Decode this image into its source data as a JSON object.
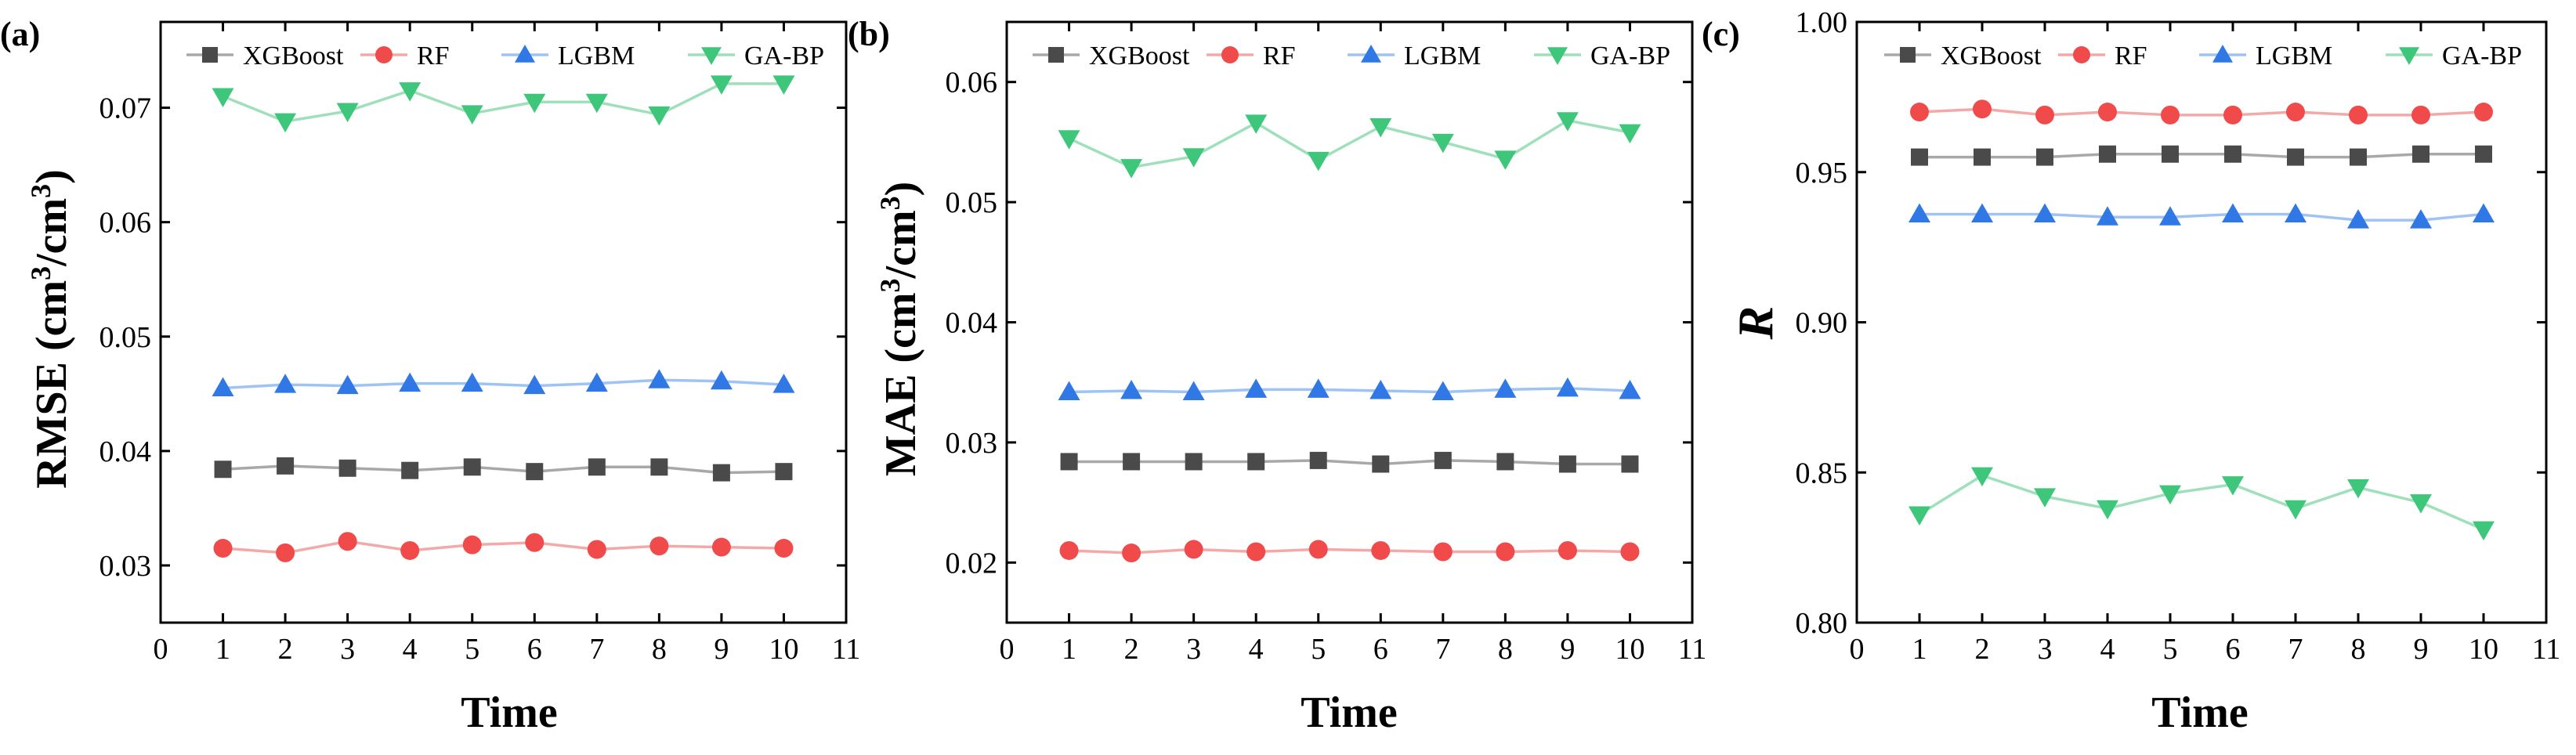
{
  "figure": {
    "xlabel": "Time"
  },
  "chart_data": [
    {
      "type": "line",
      "panel_label": "(a)",
      "ylabel_main": "RMSE (cm",
      "ylabel_sup1": "3",
      "ylabel_mid": "/cm",
      "ylabel_sup2": "3",
      "ylabel_end": ")",
      "ylabel_italic": false,
      "xlabel": "Time",
      "xlim": [
        0,
        11
      ],
      "ylim": [
        0.025,
        0.0775
      ],
      "xticks": [
        0,
        1,
        2,
        3,
        4,
        5,
        6,
        7,
        8,
        9,
        10,
        11
      ],
      "yticks": [
        0.03,
        0.04,
        0.05,
        0.06,
        0.07
      ],
      "ytick_labels": [
        "0.03",
        "0.04",
        "0.05",
        "0.06",
        "0.07"
      ],
      "x": [
        1,
        2,
        3,
        4,
        5,
        6,
        7,
        8,
        9,
        10
      ],
      "series": [
        {
          "name": "XGBoost",
          "values": [
            0.0384,
            0.0387,
            0.0385,
            0.0383,
            0.0386,
            0.0382,
            0.0386,
            0.0386,
            0.0381,
            0.0382
          ]
        },
        {
          "name": "RF",
          "values": [
            0.0315,
            0.0311,
            0.0321,
            0.0313,
            0.0318,
            0.032,
            0.0314,
            0.0317,
            0.0316,
            0.0315
          ]
        },
        {
          "name": "LGBM",
          "values": [
            0.0455,
            0.0458,
            0.0457,
            0.0459,
            0.0459,
            0.0457,
            0.0459,
            0.0462,
            0.0461,
            0.0458
          ]
        },
        {
          "name": "GA-BP",
          "values": [
            0.071,
            0.0688,
            0.0697,
            0.0715,
            0.0695,
            0.0705,
            0.0705,
            0.0694,
            0.0721,
            0.0721
          ]
        }
      ]
    },
    {
      "type": "line",
      "panel_label": "(b)",
      "ylabel_main": "MAE (cm",
      "ylabel_sup1": "3",
      "ylabel_mid": "/cm",
      "ylabel_sup2": "3",
      "ylabel_end": ")",
      "ylabel_italic": false,
      "xlabel": "Time",
      "xlim": [
        0,
        11
      ],
      "ylim": [
        0.015,
        0.065
      ],
      "xticks": [
        0,
        1,
        2,
        3,
        4,
        5,
        6,
        7,
        8,
        9,
        10,
        11
      ],
      "yticks": [
        0.02,
        0.03,
        0.04,
        0.05,
        0.06
      ],
      "ytick_labels": [
        "0.02",
        "0.03",
        "0.04",
        "0.05",
        "0.06"
      ],
      "x": [
        1,
        2,
        3,
        4,
        5,
        6,
        7,
        8,
        9,
        10
      ],
      "series": [
        {
          "name": "XGBoost",
          "values": [
            0.0284,
            0.0284,
            0.0284,
            0.0284,
            0.0285,
            0.0282,
            0.0285,
            0.0284,
            0.0282,
            0.0282
          ]
        },
        {
          "name": "RF",
          "values": [
            0.021,
            0.0208,
            0.0211,
            0.0209,
            0.0211,
            0.021,
            0.0209,
            0.0209,
            0.021,
            0.0209
          ]
        },
        {
          "name": "LGBM",
          "values": [
            0.0342,
            0.0343,
            0.0342,
            0.0344,
            0.0344,
            0.0343,
            0.0342,
            0.0344,
            0.0345,
            0.0343
          ]
        },
        {
          "name": "GA-BP",
          "values": [
            0.0553,
            0.0529,
            0.0538,
            0.0566,
            0.0535,
            0.0563,
            0.055,
            0.0536,
            0.0568,
            0.0558
          ]
        }
      ]
    },
    {
      "type": "line",
      "panel_label": "(c)",
      "ylabel_main": "R",
      "ylabel_sup1": "",
      "ylabel_mid": "",
      "ylabel_sup2": "",
      "ylabel_end": "",
      "ylabel_italic": true,
      "xlabel": "Time",
      "xlim": [
        0,
        11
      ],
      "ylim": [
        0.8,
        1.0
      ],
      "xticks": [
        0,
        1,
        2,
        3,
        4,
        5,
        6,
        7,
        8,
        9,
        10,
        11
      ],
      "yticks": [
        0.8,
        0.85,
        0.9,
        0.95,
        1.0
      ],
      "ytick_labels": [
        "0.80",
        "0.85",
        "0.90",
        "0.95",
        "1.00"
      ],
      "x": [
        1,
        2,
        3,
        4,
        5,
        6,
        7,
        8,
        9,
        10
      ],
      "series": [
        {
          "name": "XGBoost",
          "values": [
            0.955,
            0.955,
            0.955,
            0.956,
            0.956,
            0.956,
            0.955,
            0.955,
            0.956,
            0.956
          ]
        },
        {
          "name": "RF",
          "values": [
            0.97,
            0.971,
            0.969,
            0.97,
            0.969,
            0.969,
            0.97,
            0.969,
            0.969,
            0.97
          ]
        },
        {
          "name": "LGBM",
          "values": [
            0.936,
            0.936,
            0.936,
            0.935,
            0.935,
            0.936,
            0.936,
            0.934,
            0.934,
            0.936
          ]
        },
        {
          "name": "GA-BP",
          "values": [
            0.836,
            0.849,
            0.842,
            0.838,
            0.843,
            0.846,
            0.838,
            0.845,
            0.84,
            0.831
          ]
        }
      ]
    }
  ],
  "series_style": [
    {
      "name": "XGBoost",
      "marker": "square",
      "marker_color": "#4a4a4a",
      "line_color": "#a8a8a8"
    },
    {
      "name": "RF",
      "marker": "circle",
      "marker_color": "#f04a4a",
      "line_color": "#f4a9a9"
    },
    {
      "name": "LGBM",
      "marker": "triangle-up",
      "marker_color": "#2f78e6",
      "line_color": "#9fc3f3"
    },
    {
      "name": "GA-BP",
      "marker": "triangle-down",
      "marker_color": "#3ec77a",
      "line_color": "#9fe0bb"
    }
  ]
}
